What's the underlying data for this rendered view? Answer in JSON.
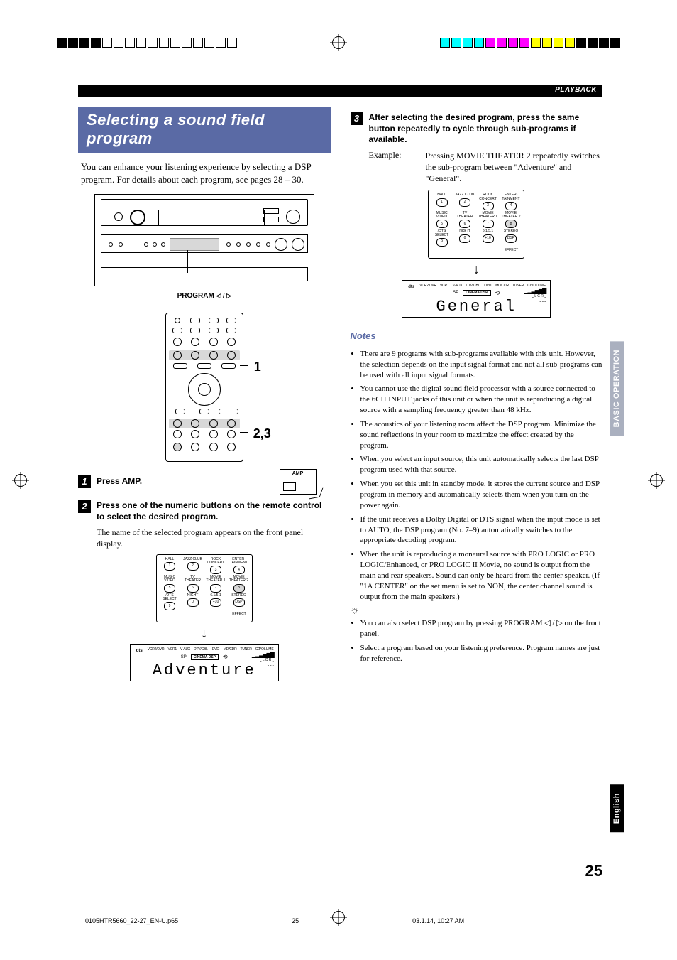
{
  "header": {
    "section_label": "PLAYBACK"
  },
  "left": {
    "banner": "Selecting a sound field program",
    "intro": "You can enhance your listening experience by selecting a DSP program. For details about each program, see pages 28 – 30.",
    "program_caption": {
      "label": "PROGRAM",
      "arrows": "◁ / ▷"
    },
    "remote_callouts": {
      "one": "1",
      "two_three": "2,3"
    },
    "step1": {
      "text": "Press AMP.",
      "icon_label": "AMP"
    },
    "step2": {
      "text": "Press one of the numeric buttons on the remote control to select the desired program.",
      "body": "The name of the selected program appears on the front panel display."
    },
    "keypad": {
      "rows": [
        [
          {
            "lbl": "HALL",
            "n": "1"
          },
          {
            "lbl": "JAZZ CLUB",
            "n": "2"
          },
          {
            "lbl": "ROCK CONCERT",
            "n": "3"
          },
          {
            "lbl": "ENTER-TAINMENT",
            "n": "4"
          }
        ],
        [
          {
            "lbl": "MUSIC VIDEO",
            "n": "5"
          },
          {
            "lbl": "TV THEATER",
            "n": "6"
          },
          {
            "lbl": "MOVIE THEATER 1",
            "n": "7"
          },
          {
            "lbl": "MOVIE THEATER 2",
            "n": "8",
            "hl": true
          }
        ],
        [
          {
            "lbl": "/DTS SELECT",
            "n": "9"
          },
          {
            "lbl": "NIGHT",
            "n": "0"
          },
          {
            "lbl": "6.1/5.1",
            "n": "+10"
          },
          {
            "lbl": "STEREO",
            "n": "DSP"
          }
        ]
      ],
      "footer": "EFFECT"
    },
    "lcd": {
      "inputs": [
        "VCR2/DVR",
        "VCR1",
        "V-AUX",
        "DTV/CBL",
        "DVD",
        "MD/CDR",
        "TUNER",
        "CD"
      ],
      "input_selected_index": 4,
      "chip_pre": "SP",
      "chip": "CINEMA DSP",
      "volume_label": "VOLUME",
      "program": "Adventure"
    }
  },
  "right": {
    "step3": {
      "text": "After selecting the desired program, press the same button repeatedly to cycle through sub-programs if available.",
      "example_label": "Example:",
      "example_text": "Pressing MOVIE THEATER 2 repeatedly switches the sub-program between \"Adventure\" and \"General\"."
    },
    "lcd": {
      "inputs": [
        "VCR2/DVR",
        "VCR1",
        "V-AUX",
        "DTV/CBL",
        "DVD",
        "MD/CDR",
        "TUNER",
        "CD"
      ],
      "input_selected_index": 4,
      "chip_pre": "SP",
      "chip": "CINEMA DSP",
      "volume_label": "VOLUME",
      "program": "General"
    },
    "notes_heading": "Notes",
    "notes": [
      "There are 9 programs with sub-programs available with this unit. However, the selection depends on the input signal format and not all sub-programs can be used with all input signal formats.",
      "You cannot use the digital sound field processor with a source connected to the 6CH INPUT jacks of this unit or when the unit is reproducing a digital source with a sampling frequency greater than 48 kHz.",
      "The acoustics of your listening room affect the DSP program. Minimize the sound reflections in your room to maximize the effect created by the program.",
      "When you select an input source, this unit automatically selects the last DSP program used with that source.",
      "When you set this unit in standby mode, it stores the current source and DSP program in memory and automatically selects them when you turn on the power again.",
      "If the unit receives a Dolby Digital or DTS signal when the input mode is set to AUTO, the DSP program (No. 7–9) automatically switches to the appropriate decoding program.",
      "When the unit is reproducing a monaural source with PRO LOGIC or PRO LOGIC/Enhanced, or PRO LOGIC II Movie, no sound is output from the main and rear speakers. Sound can only be heard from the center speaker. (If \"1A CENTER\" on the set menu is set to NON, the center channel sound is output from the main speakers.)"
    ],
    "tips": [
      "You can also select DSP program by pressing PROGRAM ◁ / ▷ on the front panel.",
      "Select a program based on your listening preference. Program names are just for reference."
    ]
  },
  "sideTabs": {
    "basic": "BASIC OPERATION",
    "english": "English"
  },
  "pageNumber": "25",
  "footer": {
    "file": "0105HTR5660_22-27_EN-U.p65",
    "page": "25",
    "timestamp": "03.1.14, 10:27 AM"
  },
  "colors": {
    "banner_bg": "#5a6aa5",
    "side_basic_bg": "#aab0bf",
    "side_eng_bg": "#000000",
    "highlight": "#d8d8d8"
  }
}
